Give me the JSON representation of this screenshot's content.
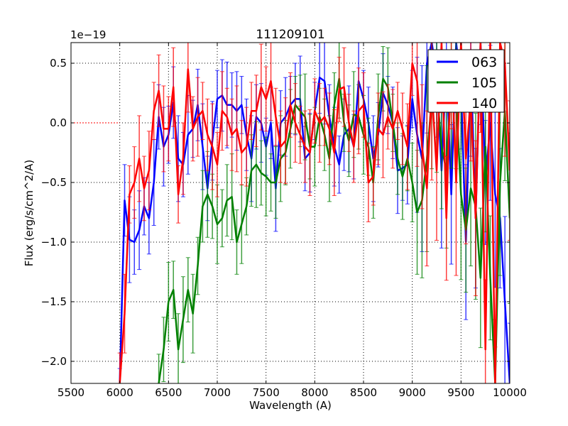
{
  "chart_data": {
    "type": "line",
    "title": "111209101",
    "xlabel": "Wavelength (A)",
    "ylabel": "Flux (erg/s/cm^2/A)",
    "y_offset_label": "1e−19",
    "xlim": [
      5500,
      10000
    ],
    "ylim": [
      -2.185,
      0.673
    ],
    "xticks": [
      5500,
      6000,
      6500,
      7000,
      7500,
      8000,
      8500,
      9000,
      9500,
      10000
    ],
    "xtick_labels": [
      "5500",
      "6000",
      "6500",
      "7000",
      "7500",
      "8000",
      "8500",
      "9000",
      "9500",
      "10000"
    ],
    "yticks": [
      -2.0,
      -1.5,
      -1.0,
      -0.5,
      0.0,
      0.5
    ],
    "ytick_labels": [
      "−2.0",
      "−1.5",
      "−1.0",
      "−0.5",
      "0.0",
      "0.5"
    ],
    "grid": true,
    "legend_position": "top-right",
    "x_start": 6000,
    "x_step": 50,
    "series": [
      {
        "name": "063",
        "color": "#0000ff",
        "yerr_ranges": [
          [
            6000,
            9000,
            0.3
          ],
          [
            9000,
            10000,
            0.65
          ]
        ],
        "values": [
          -2.3,
          -0.65,
          -0.98,
          -1.0,
          -0.9,
          -0.7,
          -0.8,
          -0.5,
          0.05,
          -0.2,
          -0.1,
          0.17,
          -0.3,
          -0.35,
          -0.1,
          -0.05,
          0.15,
          -0.2,
          -0.55,
          -0.15,
          0.2,
          0.23,
          0.15,
          0.15,
          0.1,
          0.15,
          -0.1,
          -0.3,
          0.05,
          0.0,
          -0.2,
          0.0,
          -0.55,
          0.0,
          0.05,
          0.15,
          0.2,
          0.2,
          -0.3,
          -0.25,
          0.1,
          0.38,
          0.35,
          0.05,
          -0.2,
          -0.35,
          -0.1,
          -0.05,
          -0.2,
          0.35,
          0.2,
          0.0,
          -0.3,
          -0.1,
          0.25,
          0.15,
          0.0,
          -0.4,
          -0.38,
          -0.35,
          0.2,
          -0.1,
          -0.3,
          0.5,
          1.0,
          0.4,
          -0.4,
          0.5,
          -0.6,
          0.8,
          0.3,
          -1.0,
          0.5,
          -0.8,
          0.7,
          -0.5,
          0.0,
          -0.6,
          -0.8,
          -1.5,
          -2.2
        ]
      },
      {
        "name": "105",
        "color": "#008000",
        "yerr_ranges": [
          [
            6000,
            9000,
            0.3
          ],
          [
            9000,
            10000,
            0.65
          ]
        ],
        "values": [
          null,
          null,
          null,
          null,
          null,
          null,
          null,
          null,
          -2.3,
          -1.9,
          -1.5,
          -1.4,
          -1.9,
          -1.65,
          -1.4,
          -1.6,
          -1.2,
          -0.7,
          -0.6,
          -0.7,
          -0.85,
          -0.8,
          -0.65,
          -0.62,
          -1.0,
          -0.85,
          -0.7,
          -0.4,
          -0.35,
          -0.42,
          -0.45,
          -0.5,
          -0.5,
          -0.3,
          -0.25,
          -0.05,
          0.15,
          0.1,
          0.05,
          -0.2,
          -0.2,
          0.05,
          -0.1,
          -0.3,
          0.15,
          0.37,
          0.0,
          -0.15,
          0.07,
          0.05,
          -0.1,
          -0.2,
          -0.5,
          0.05,
          0.37,
          0.3,
          0.0,
          -0.3,
          -0.45,
          -0.3,
          -0.5,
          -0.75,
          -0.65,
          -0.3,
          0.2,
          0.3,
          -0.2,
          -0.4,
          0.4,
          0.2,
          -0.6,
          -0.9,
          -0.55,
          -0.7,
          -1.3,
          -0.2,
          -1.3,
          -2.3,
          -0.5,
          0.1,
          -0.8
        ]
      },
      {
        "name": "140",
        "color": "#ff0000",
        "yerr_ranges": [
          [
            6000,
            9000,
            0.3
          ],
          [
            9000,
            10000,
            0.65
          ]
        ],
        "values": [
          -2.2,
          -1.6,
          -0.6,
          -0.5,
          -0.3,
          -0.55,
          -0.4,
          0.1,
          0.27,
          -0.05,
          -0.05,
          0.3,
          -0.6,
          -0.3,
          0.45,
          -0.05,
          0.05,
          0.1,
          -0.1,
          -0.2,
          -0.35,
          0.1,
          0.05,
          -0.1,
          -0.05,
          -0.25,
          -0.2,
          0.1,
          0.1,
          0.3,
          0.2,
          0.35,
          0.05,
          -0.2,
          -0.15,
          0.15,
          0.0,
          -0.1,
          -0.2,
          -0.25,
          0.1,
          0.0,
          0.05,
          -0.05,
          -0.25,
          0.28,
          0.3,
          0.0,
          -0.2,
          0.1,
          0.15,
          -0.5,
          -0.45,
          -0.05,
          -0.1,
          0.05,
          -0.05,
          0.1,
          -0.05,
          -0.2,
          0.5,
          0.35,
          -0.2,
          -0.55,
          0.3,
          -0.4,
          0.8,
          -0.8,
          0.6,
          -0.5,
          0.7,
          -0.3,
          0.2,
          -0.8,
          0.7,
          -1.9,
          0.8,
          -2.4,
          0.9,
          0.5,
          -0.4
        ]
      }
    ]
  }
}
